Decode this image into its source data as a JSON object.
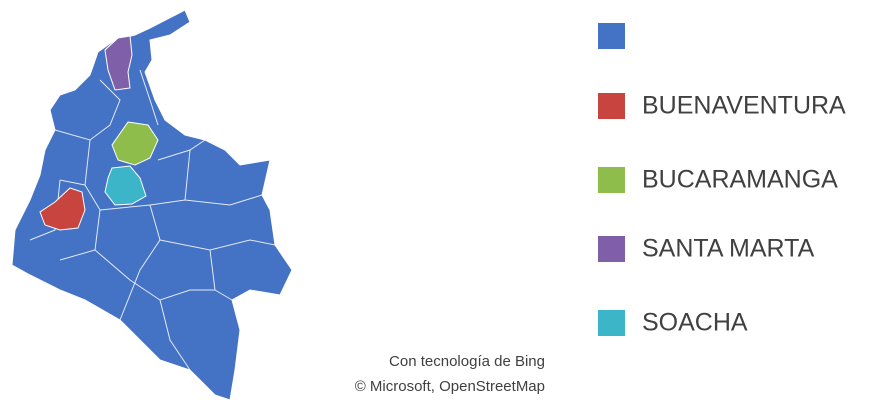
{
  "legend": [
    {
      "name": null,
      "color": "#4472c4"
    },
    {
      "name": "BUENAVENTURA",
      "color": "#c8443f"
    },
    {
      "name": "BUCARAMANGA",
      "color": "#8fbd4c"
    },
    {
      "name": "SANTA MARTA",
      "color": "#7f5fa8"
    },
    {
      "name": "SOACHA",
      "color": "#3db5c8"
    }
  ],
  "attribution": [
    "Con tecnología de Bing",
    "© Microsoft, OpenStreetMap"
  ]
}
